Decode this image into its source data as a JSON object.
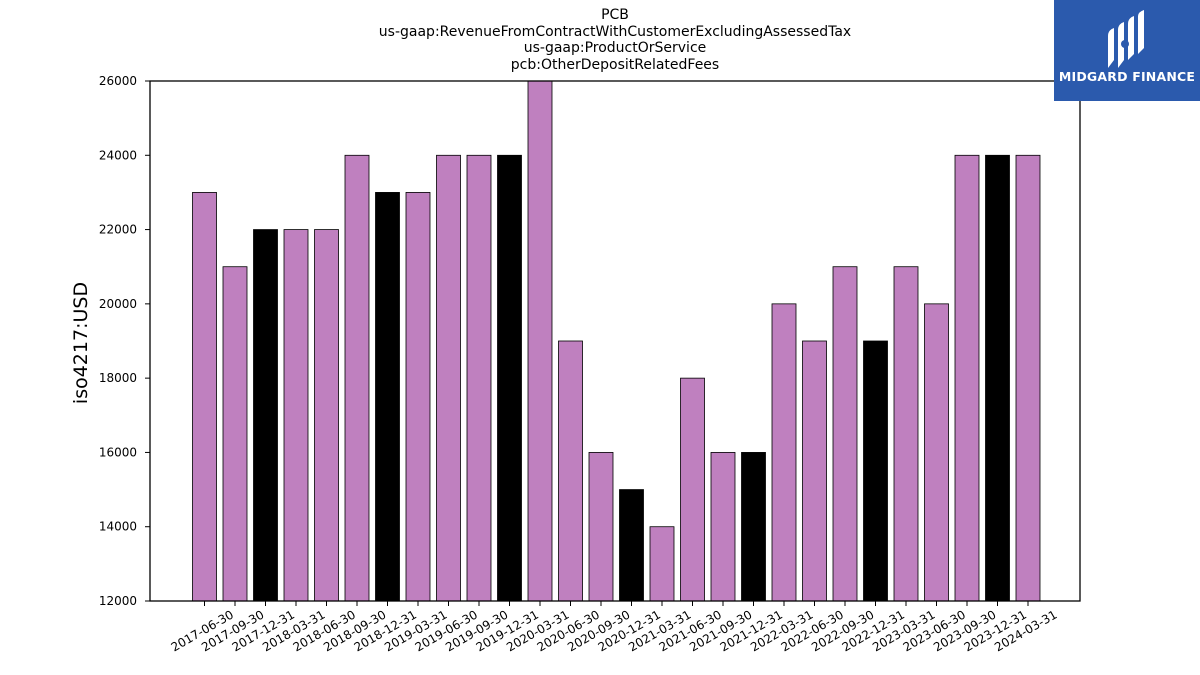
{
  "title_lines": [
    "PCB",
    "us-gaap:RevenueFromContractWithCustomerExcludingAssessedTax",
    "us-gaap:ProductOrService",
    "pcb:OtherDepositRelatedFees"
  ],
  "logo": {
    "text": "MIDGARD FINANCE",
    "icon": "midgard-logo-mark",
    "background": "#2b5aad"
  },
  "colors": {
    "quarterly": "#bf80bf",
    "year_end": "#000000"
  },
  "chart_data": {
    "type": "bar",
    "ylabel": "iso4217:USD",
    "xlabel": "",
    "ylim": [
      12000,
      26000
    ],
    "yticks": [
      "12000",
      "14000",
      "16000",
      "18000",
      "20000",
      "22000",
      "24000",
      "26000"
    ],
    "categories": [
      "2017-06-30",
      "2017-09-30",
      "2017-12-31",
      "2018-03-31",
      "2018-06-30",
      "2018-09-30",
      "2018-12-31",
      "2019-03-31",
      "2019-06-30",
      "2019-09-30",
      "2019-12-31",
      "2020-03-31",
      "2020-06-30",
      "2020-09-30",
      "2020-12-31",
      "2021-03-31",
      "2021-06-30",
      "2021-09-30",
      "2021-12-31",
      "2022-03-31",
      "2022-06-30",
      "2022-09-30",
      "2022-12-31",
      "2023-03-31",
      "2023-06-30",
      "2023-09-30",
      "2023-12-31",
      "2024-03-31"
    ],
    "values": [
      23000,
      21000,
      22000,
      22000,
      22000,
      24000,
      23000,
      23000,
      24000,
      24000,
      24000,
      26000,
      19000,
      16000,
      15000,
      14000,
      18000,
      16000,
      16000,
      20000,
      19000,
      21000,
      19000,
      21000,
      20000,
      24000,
      24000,
      24000
    ],
    "year_end": [
      false,
      false,
      true,
      false,
      false,
      false,
      true,
      false,
      false,
      false,
      true,
      false,
      false,
      false,
      true,
      false,
      false,
      false,
      true,
      false,
      false,
      false,
      true,
      false,
      false,
      false,
      true,
      false
    ],
    "grid": false,
    "legend": "none"
  }
}
